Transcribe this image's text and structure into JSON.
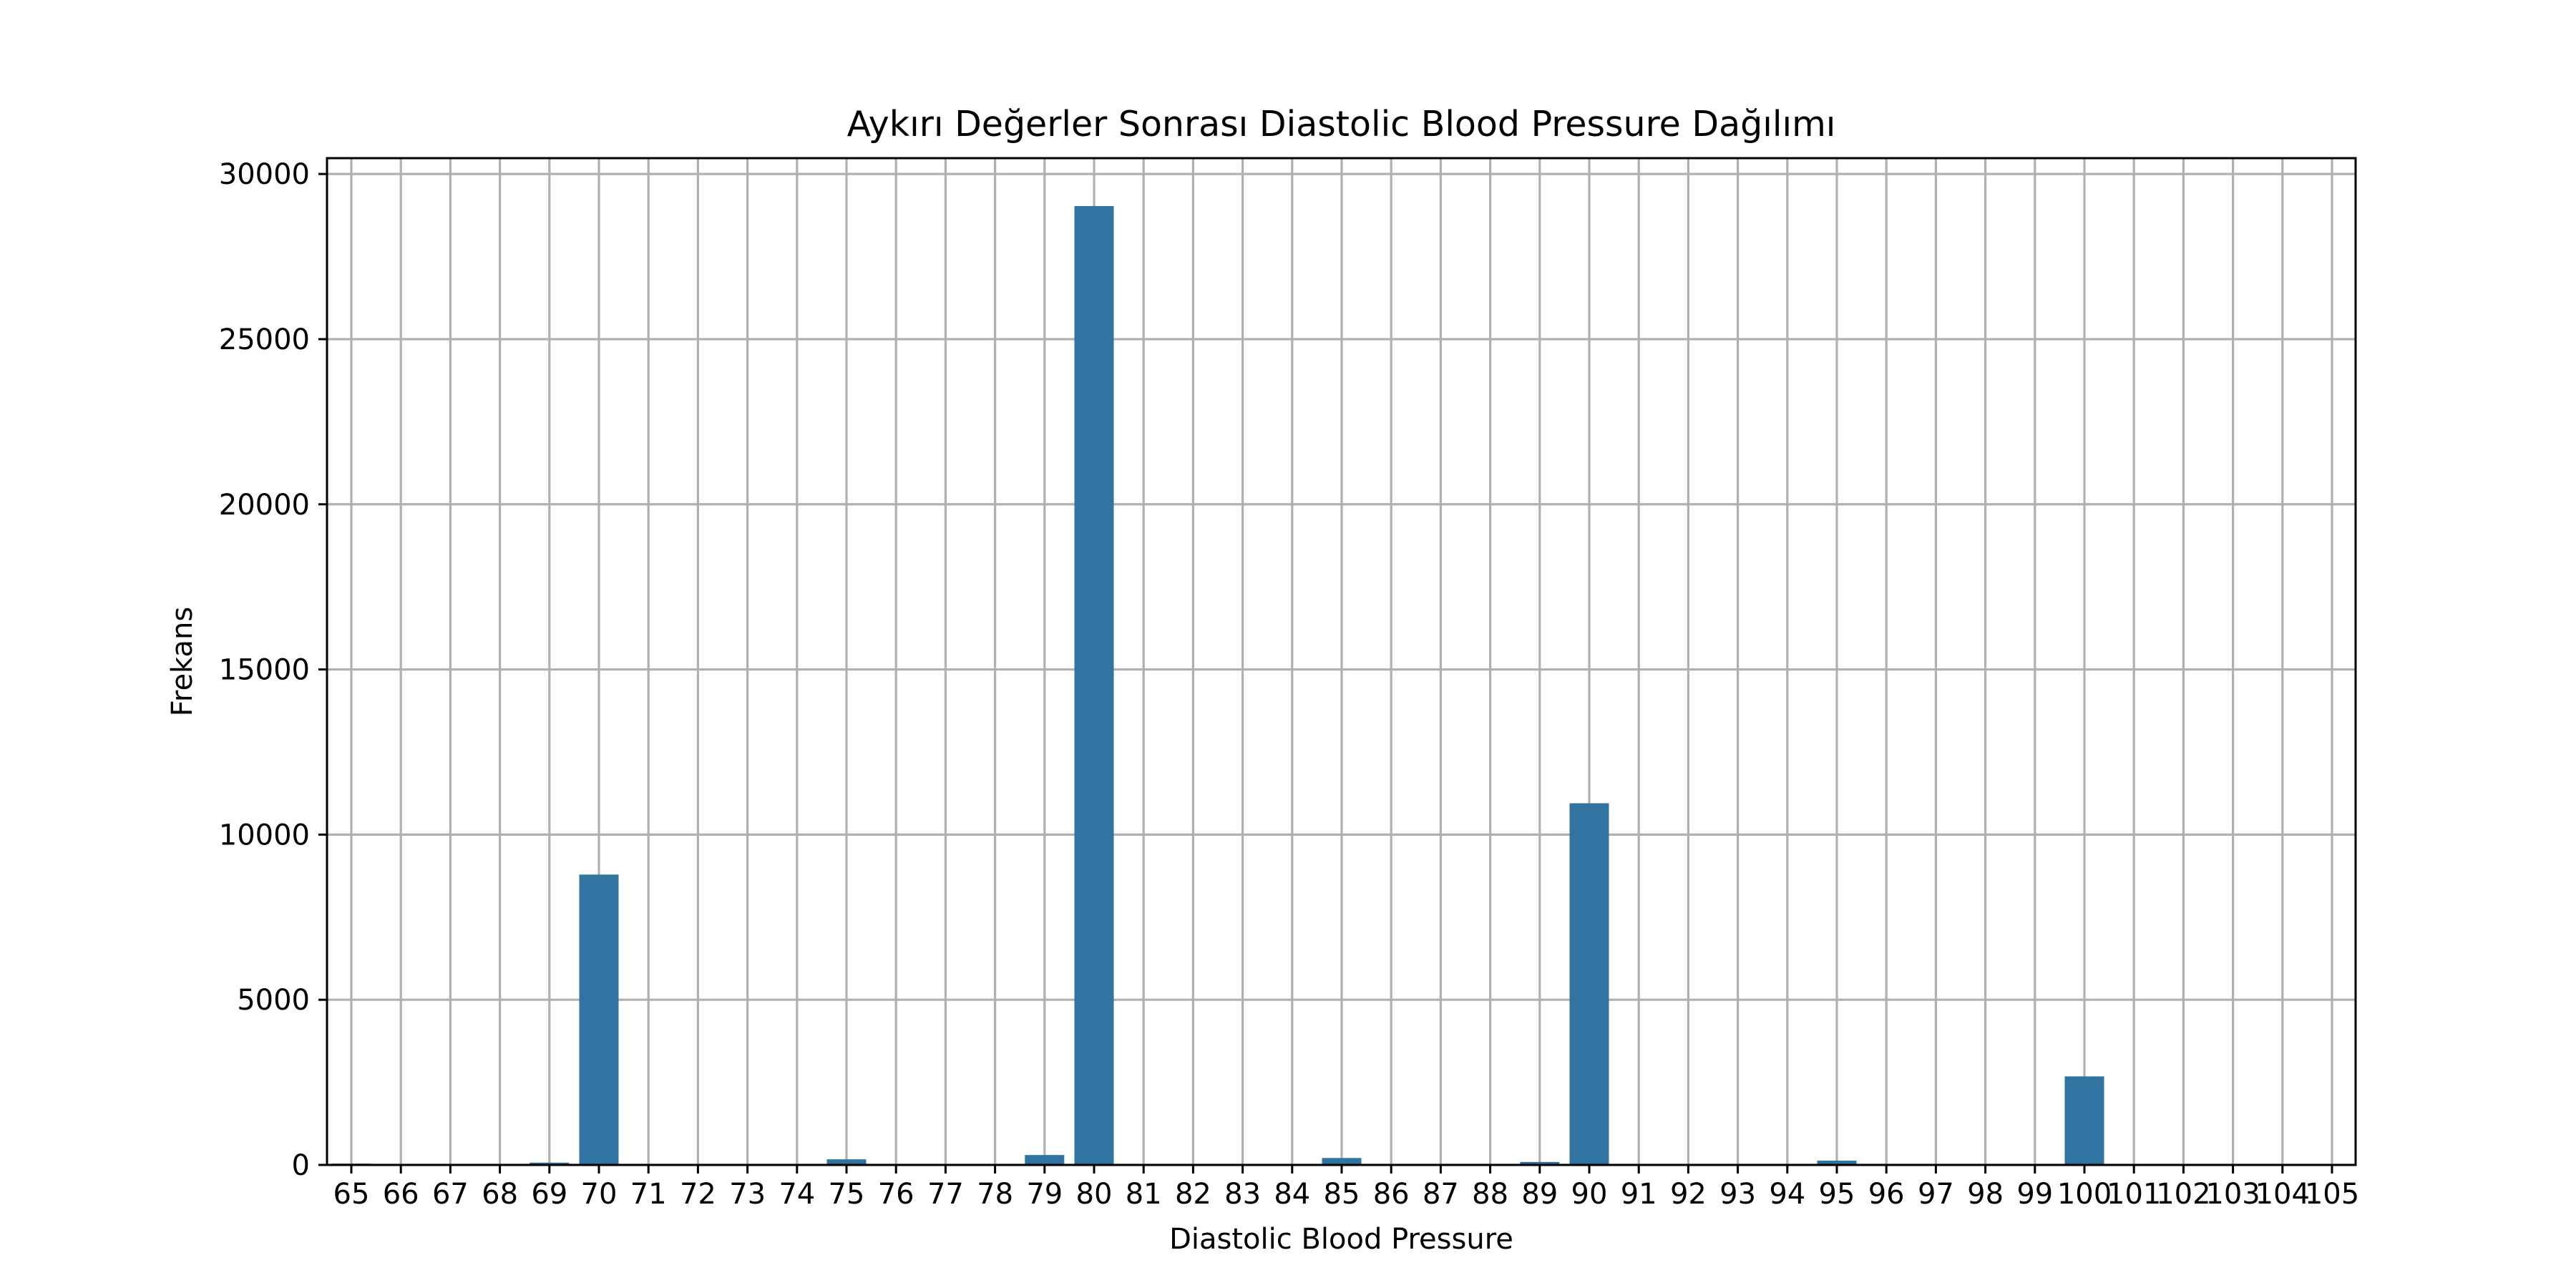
{
  "chart_data": {
    "type": "bar",
    "title": "Aykırı Değerler Sonrası Diastolic Blood Pressure Dağılımı",
    "xlabel": "Diastolic Blood Pressure",
    "ylabel": "Frekans",
    "categories": [
      "65",
      "66",
      "67",
      "68",
      "69",
      "70",
      "71",
      "72",
      "73",
      "74",
      "75",
      "76",
      "77",
      "78",
      "79",
      "80",
      "81",
      "82",
      "83",
      "84",
      "85",
      "86",
      "87",
      "88",
      "89",
      "90",
      "91",
      "92",
      "93",
      "94",
      "95",
      "96",
      "97",
      "98",
      "99",
      "100",
      "101",
      "102",
      "103",
      "104",
      "105"
    ],
    "values": [
      40,
      2,
      1,
      2,
      70,
      8790,
      3,
      2,
      2,
      2,
      170,
      5,
      3,
      5,
      300,
      29030,
      3,
      3,
      2,
      3,
      210,
      4,
      3,
      4,
      90,
      10950,
      2,
      2,
      1,
      2,
      130,
      2,
      1,
      1,
      1,
      2680,
      1,
      1,
      1,
      1,
      1
    ],
    "ylim": [
      0,
      30480
    ],
    "yticks": [
      0,
      5000,
      10000,
      15000,
      20000,
      25000,
      30000
    ],
    "grid": true,
    "colors": {
      "bar": "#3274a1",
      "grid": "#b0b0b0",
      "axis": "#000000"
    }
  }
}
